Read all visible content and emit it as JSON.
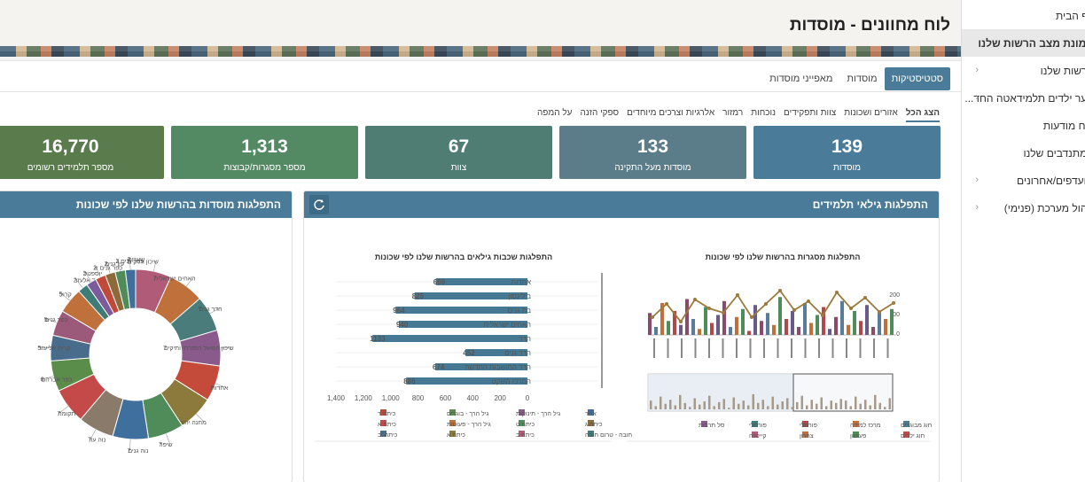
{
  "page_title": "לוח מחוונים - מוסדות",
  "sidebar": {
    "items": [
      {
        "label": "דף הבית",
        "chevron": false,
        "active": false
      },
      {
        "label": "תמונת מצב הרשות שלנו",
        "chevron": false,
        "active": true
      },
      {
        "label": "הרשות שלנו",
        "chevron": true,
        "active": false
      },
      {
        "label": "נוער ילדים תלמידאטה החד...",
        "chevron": true,
        "active": false
      },
      {
        "label": "לוח מודעות",
        "chevron": false,
        "active": false
      },
      {
        "label": "המתנדבים שלנו",
        "chevron": false,
        "active": false
      },
      {
        "label": "מועדפים/אחרונים",
        "chevron": true,
        "active": false
      },
      {
        "label": "ניהול מערכת (פנימי)",
        "chevron": true,
        "active": false
      }
    ]
  },
  "tabs": [
    "סטטיסטיקות",
    "מוסדות",
    "מאפייני מוסדות"
  ],
  "filters": [
    "הצג הכל",
    "אזורים ושכונות",
    "צוות ותפקידים",
    "נוכחות",
    "רמזור",
    "אלרגיות וצרכים מיוחדים",
    "ספקי הזנה",
    "על המפה"
  ],
  "kpis": [
    {
      "value": "139",
      "label": "מוסדות",
      "color": "#4a7c99"
    },
    {
      "value": "133",
      "label": "מוסדות מעל התקינה",
      "color": "#5b7c89"
    },
    {
      "value": "67",
      "label": "צוות",
      "color": "#4f7d74"
    },
    {
      "value": "1,313",
      "label": "מספר מסגרות/קבוצות",
      "color": "#548a63"
    },
    {
      "value": "16,770",
      "label": "מספר תלמידים רשומים",
      "color": "#5a7c4d"
    }
  ],
  "panel_ages": {
    "title": "התפלגות גילאי תלמידים",
    "bar_chart_title": "התפלגות שכבות גילאים בהרשות שלנו לפי שכונות",
    "combo_chart_title": "התפלגות מסגרות בהרשות שלנו לפי שכונות",
    "bar_legend": [
      "אחר",
      "גיל הרך - תינוקות",
      "גיל הרך - בוגרים",
      "כיתה ד",
      "כיתה ג",
      "כיתה ט",
      "גיל הרך - פעוטות",
      "כיתה א",
      "חובה - טרום חובה",
      "כיתה ב",
      "כיתה א",
      "כיתה יב"
    ],
    "combo_legend": [
      "חוג מבוגרים",
      "מרכז למידה",
      "פורמלי",
      "פורמלי",
      "סל תרבות",
      "חוג ילדים",
      "פעוטון",
      "צהרון",
      "קייטנה"
    ]
  },
  "panel_institutions": {
    "title": "התפלגות מוסדות בהרשות שלנו לפי שכונות"
  },
  "chart_data": [
    {
      "type": "bar",
      "title": "התפלגות שכבות גילאים בהרשות שלנו לפי שכונות",
      "categories": [
        "אחדות",
        "בילינסון",
        "בת גנים",
        "האחים ישראלית",
        "הדר",
        "הדר גנים",
        "הדר המושבות החדשה",
        "המרכז השקט"
      ],
      "values": [
        669,
        825,
        964,
        940,
        1133,
        452,
        674,
        886
      ],
      "xlim": [
        0,
        1400
      ],
      "xticks": [
        "1,400",
        "1,200",
        "1,000",
        "800",
        "600",
        "400",
        "200",
        "0"
      ]
    },
    {
      "type": "pie",
      "title": "התפלגות מוסדות בהרשות שלנו לפי שכונות",
      "labels": [
        "שיכון ותיקים",
        "האחים ישראלית",
        "הדר גנים",
        "שיכון הפועל המזרחי ותיקים",
        "אחדות",
        "מחנה יהודה",
        "שיפר",
        "נוה גנים",
        "נוה עוז",
        "תקומה",
        "כפר אברהם",
        "קרית אליעזר",
        "כפר גנים",
        "קרול",
        "קרית דוד אלעזר",
        "יוספטל",
        "כפר גנים א",
        "עין גנים",
        "כפר גנים ג",
        "שעריה"
      ],
      "values": [
        7,
        7,
        7,
        7,
        7,
        7,
        7,
        7,
        7,
        7,
        6,
        5,
        5,
        5,
        2,
        2,
        2,
        2,
        2,
        2
      ],
      "colors": [
        "#b05c78",
        "#c0703a",
        "#4a7c7c",
        "#8a5a8c",
        "#c44a3a",
        "#8c7a3c",
        "#4f8c5a",
        "#3f6f9c",
        "#8a7a6a",
        "#c44a4a",
        "#5a8c4a",
        "#4a6c8c",
        "#9c5a7a",
        "#c0703a",
        "#3f7c78",
        "#7c5a9c",
        "#c04a3a",
        "#8c6a3a",
        "#4f8c5a",
        "#3f6f9c"
      ]
    },
    {
      "type": "bar",
      "title": "התפלגות מסגרות בהרשות שלנו לפי שכונות",
      "yticks": [
        "200",
        "100",
        "0"
      ]
    }
  ]
}
